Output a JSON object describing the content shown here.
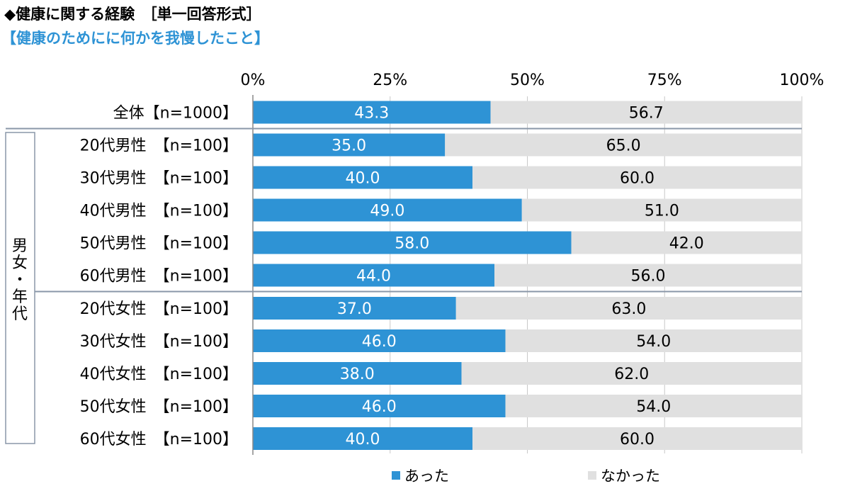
{
  "header": {
    "title": "◆健康に関する経験　［単一回答形式］",
    "subtitle": "【健康のためにに何かを我慢したこと】"
  },
  "colors": {
    "accent": "#2e93d5",
    "rest": "#e0e0e0",
    "subtitle": "#2e93d5",
    "divider": "#8a97a8"
  },
  "chart_data": {
    "type": "bar",
    "orientation": "horizontal",
    "stacked": true,
    "percent_scale": true,
    "xlim": [
      0,
      100
    ],
    "xticks": [
      "0%",
      "25%",
      "50%",
      "75%",
      "100%"
    ],
    "group_label": "男女・年代",
    "categories": [
      "全体【n=1000】",
      "20代男性　【n=100】",
      "30代男性　【n=100】",
      "40代男性　【n=100】",
      "50代男性　【n=100】",
      "60代男性　【n=100】",
      "20代女性　【n=100】",
      "30代女性　【n=100】",
      "40代女性　【n=100】",
      "50代女性　【n=100】",
      "60代女性　【n=100】"
    ],
    "series": [
      {
        "name": "あった",
        "color": "#2e93d5",
        "values": [
          43.3,
          35.0,
          40.0,
          49.0,
          58.0,
          44.0,
          37.0,
          46.0,
          38.0,
          46.0,
          40.0
        ],
        "labels": [
          "43.3",
          "35.0",
          "40.0",
          "49.0",
          "58.0",
          "44.0",
          "37.0",
          "46.0",
          "38.0",
          "46.0",
          "40.0"
        ]
      },
      {
        "name": "なかった",
        "color": "#e0e0e0",
        "values": [
          56.7,
          65.0,
          60.0,
          51.0,
          42.0,
          56.0,
          63.0,
          54.0,
          62.0,
          54.0,
          60.0
        ],
        "labels": [
          "56.7",
          "65.0",
          "60.0",
          "51.0",
          "42.0",
          "56.0",
          "63.0",
          "54.0",
          "62.0",
          "54.0",
          "60.0"
        ]
      }
    ],
    "legend": {
      "position": "bottom"
    }
  }
}
